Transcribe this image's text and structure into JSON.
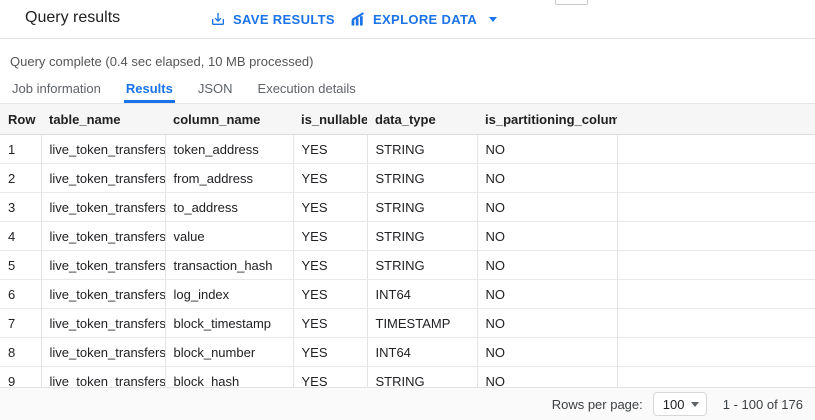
{
  "header": {
    "title": "Query results",
    "save_results_label": "SAVE RESULTS",
    "explore_data_label": "EXPLORE DATA"
  },
  "status": {
    "message": "Query complete (0.4 sec elapsed, 10 MB processed)"
  },
  "tabs": [
    {
      "label": "Job information",
      "active": false
    },
    {
      "label": "Results",
      "active": true
    },
    {
      "label": "JSON",
      "active": false
    },
    {
      "label": "Execution details",
      "active": false
    }
  ],
  "table": {
    "columns": [
      "Row",
      "table_name",
      "column_name",
      "is_nullable",
      "data_type",
      "is_partitioning_column"
    ],
    "column_keys": [
      "row",
      "table_name",
      "column_name",
      "is_nullable",
      "data_type",
      "is_partitioning_column"
    ],
    "rows": [
      [
        "1",
        "live_token_transfers",
        "token_address",
        "YES",
        "STRING",
        "NO"
      ],
      [
        "2",
        "live_token_transfers",
        "from_address",
        "YES",
        "STRING",
        "NO"
      ],
      [
        "3",
        "live_token_transfers",
        "to_address",
        "YES",
        "STRING",
        "NO"
      ],
      [
        "4",
        "live_token_transfers",
        "value",
        "YES",
        "STRING",
        "NO"
      ],
      [
        "5",
        "live_token_transfers",
        "transaction_hash",
        "YES",
        "STRING",
        "NO"
      ],
      [
        "6",
        "live_token_transfers",
        "log_index",
        "YES",
        "INT64",
        "NO"
      ],
      [
        "7",
        "live_token_transfers",
        "block_timestamp",
        "YES",
        "TIMESTAMP",
        "NO"
      ],
      [
        "8",
        "live_token_transfers",
        "block_number",
        "YES",
        "INT64",
        "NO"
      ],
      [
        "9",
        "live_token_transfers",
        "block_hash",
        "YES",
        "STRING",
        "NO"
      ]
    ]
  },
  "footer": {
    "rows_per_page_label": "Rows per page:",
    "rows_per_page_value": "100",
    "range_text": "1 - 100 of 176"
  },
  "colors": {
    "accent_blue": "#1a73e8",
    "text_dark": "#202124",
    "text_gray": "#5f6368",
    "border": "#e3e3e3",
    "table_header_bg": "#f6f6f6",
    "footer_bg": "#fafafa"
  }
}
